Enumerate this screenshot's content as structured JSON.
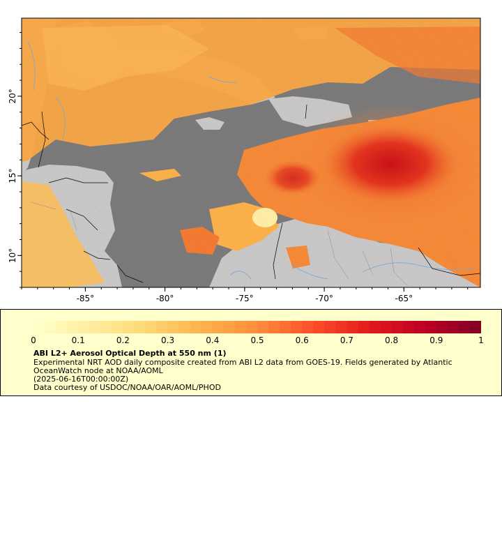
{
  "map": {
    "lon_ticks": [
      {
        "value": -85,
        "label": "-85°"
      },
      {
        "value": -80,
        "label": "-80°"
      },
      {
        "value": -75,
        "label": "-75°"
      },
      {
        "value": -70,
        "label": "-70°"
      },
      {
        "value": -65,
        "label": "-65°"
      }
    ],
    "lat_ticks": [
      {
        "value": 20,
        "label": "20°"
      },
      {
        "value": 15,
        "label": "15°"
      },
      {
        "value": 10,
        "label": "10°"
      }
    ],
    "colors": {
      "ocean_nodata": "#7a7a7a",
      "land": "#c8c8c8",
      "border": "#000000",
      "river": "#6fa8dc"
    }
  },
  "legend": {
    "title": "ABI L2+ Aerosol Optical Depth at 550 nm (1)",
    "description": "Experimental NRT AOD daily composite created from ABI L2 data from GOES-19. Fields generated by Atlantic OceanWatch node at NOAA/AOML",
    "date": "(2025-06-16T00:00:00Z)",
    "credit": "Data courtesy of USDOC/NOAA/OAR/AOML/PHOD",
    "colorbar": {
      "min": 0,
      "max": 1,
      "ticks": [
        "0",
        "0.1",
        "0.2",
        "0.3",
        "0.4",
        "0.5",
        "0.6",
        "0.7",
        "0.8",
        "0.9",
        "1"
      ],
      "colors": [
        "#ffffcc",
        "#ffeda0",
        "#fed976",
        "#feb24c",
        "#fd8d3c",
        "#fc4e2a",
        "#e31a1c",
        "#bd0026",
        "#800026"
      ]
    }
  }
}
